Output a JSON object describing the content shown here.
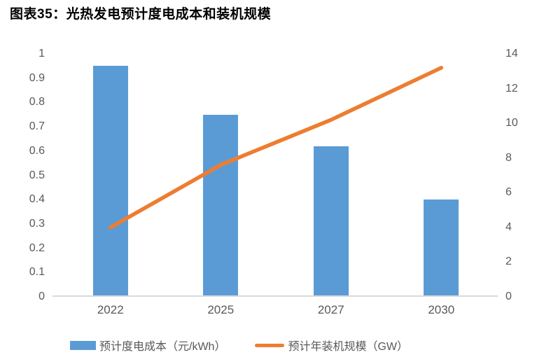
{
  "title": "图表35：光热发电预计度电成本和装机规模",
  "colors": {
    "bar": "#5B9BD5",
    "line": "#ED7D31",
    "axis_text": "#595959",
    "axis_line": "#D9D9D9",
    "title_text": "#000000",
    "background": "#FFFFFF"
  },
  "chart_data": {
    "type": "bar+line combo",
    "categories": [
      "2022",
      "2025",
      "2027",
      "2030"
    ],
    "series": [
      {
        "name": "预计度电成本（元/kWh）",
        "type": "bar",
        "axis": "left",
        "color": "#5B9BD5",
        "values": [
          0.95,
          0.75,
          0.62,
          0.4
        ]
      },
      {
        "name": "预计年装机规模（GW）",
        "type": "line",
        "axis": "right",
        "color": "#ED7D31",
        "values": [
          4.0,
          7.6,
          10.2,
          13.2
        ]
      }
    ],
    "left_axis": {
      "min": 0,
      "max": 1,
      "step": 0.1,
      "ticks": [
        "1",
        "0.9",
        "0.8",
        "0.7",
        "0.6",
        "0.5",
        "0.4",
        "0.3",
        "0.2",
        "0.1",
        "0"
      ]
    },
    "right_axis": {
      "min": 0,
      "max": 14,
      "step": 2,
      "ticks": [
        "14",
        "12",
        "10",
        "8",
        "6",
        "4",
        "2",
        "0"
      ]
    },
    "grid": false,
    "legend_position": "bottom",
    "title": "图表35：光热发电预计度电成本和装机规模"
  }
}
